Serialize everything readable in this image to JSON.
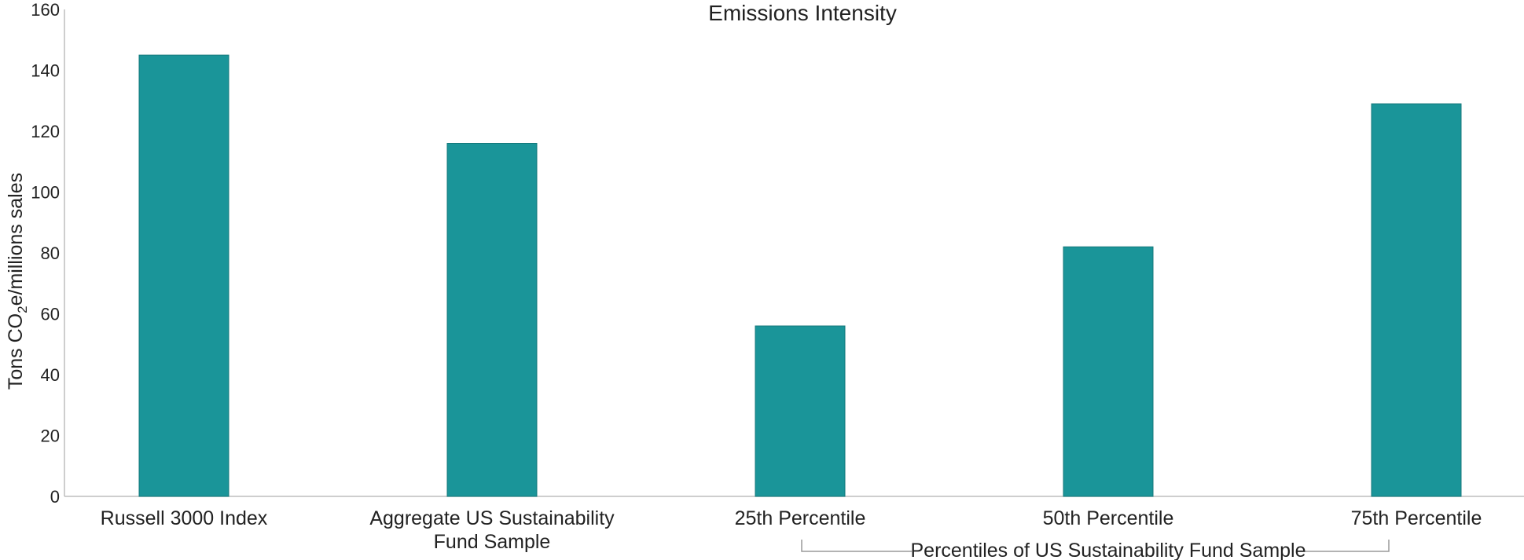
{
  "chart_data": {
    "type": "bar",
    "title": "Emissions Intensity",
    "xlabel": "",
    "ylabel": {
      "prefix": "Tons CO",
      "subscript": "2",
      "suffix": "e/millions sales"
    },
    "ylim": [
      0,
      160
    ],
    "yticks": [
      0,
      20,
      40,
      60,
      80,
      100,
      120,
      140,
      160
    ],
    "categories": [
      {
        "lines": [
          "Russell 3000 Index"
        ]
      },
      {
        "lines": [
          "Aggregate US Sustainability",
          "Fund Sample"
        ]
      },
      {
        "lines": [
          "25th Percentile"
        ]
      },
      {
        "lines": [
          "50th Percentile"
        ]
      },
      {
        "lines": [
          "75th Percentile"
        ]
      }
    ],
    "values": [
      145,
      116,
      56,
      82,
      129
    ],
    "bar_color": "#1a9599",
    "group_label": "Percentiles of US Sustainability Fund Sample",
    "grid": false
  }
}
